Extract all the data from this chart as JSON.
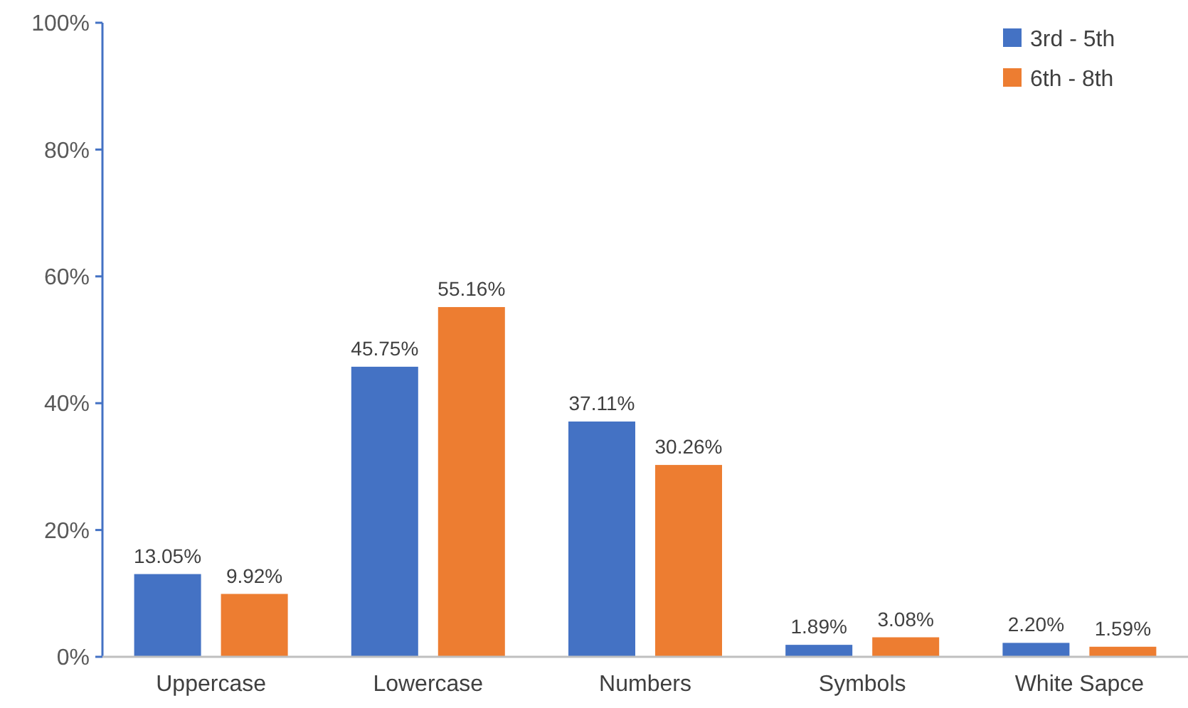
{
  "chart_data": {
    "type": "bar",
    "categories": [
      "Uppercase",
      "Lowercase",
      "Numbers",
      "Symbols",
      "White Sapce"
    ],
    "series": [
      {
        "name": "3rd - 5th",
        "color": "#4472c4",
        "values": [
          13.05,
          45.75,
          37.11,
          1.89,
          2.2
        ],
        "value_labels": [
          "13.05%",
          "45.75%",
          "37.11%",
          "1.89%",
          "2.20%"
        ]
      },
      {
        "name": "6th - 8th",
        "color": "#ed7d31",
        "values": [
          9.92,
          55.16,
          30.26,
          3.08,
          1.59
        ],
        "value_labels": [
          "9.92%",
          "55.16%",
          "30.26%",
          "3.08%",
          "1.59%"
        ]
      }
    ],
    "ylim": [
      0,
      100
    ],
    "yticks": [
      {
        "value": 0,
        "label": "0%"
      },
      {
        "value": 20,
        "label": "20%"
      },
      {
        "value": 40,
        "label": "40%"
      },
      {
        "value": 60,
        "label": "60%"
      },
      {
        "value": 80,
        "label": "80%"
      },
      {
        "value": 100,
        "label": "100%"
      }
    ],
    "grid": false,
    "legend": "top right"
  }
}
